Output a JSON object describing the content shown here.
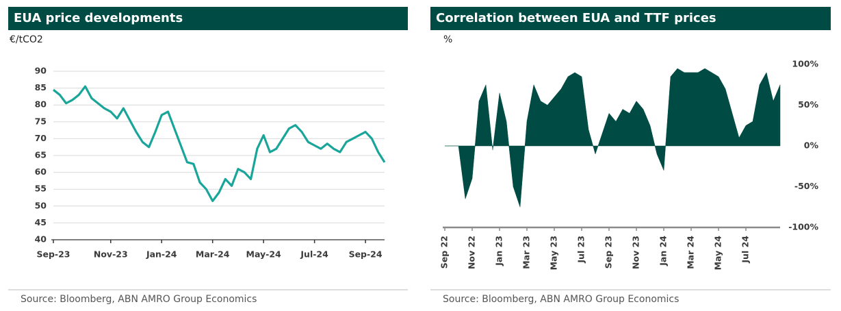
{
  "chart_data": [
    {
      "type": "line",
      "title": "EUA price developments",
      "ylabel": "€/tCO2",
      "x": [
        "Sep-23",
        "Sep-23",
        "Sep-23",
        "Sep-23",
        "Oct-23",
        "Oct-23",
        "Oct-23",
        "Oct-23",
        "Oct-23",
        "Nov-23",
        "Nov-23",
        "Nov-23",
        "Nov-23",
        "Dec-23",
        "Dec-23",
        "Dec-23",
        "Dec-23",
        "Jan-24",
        "Jan-24",
        "Jan-24",
        "Jan-24",
        "Feb-24",
        "Feb-24",
        "Feb-24",
        "Feb-24",
        "Mar-24",
        "Mar-24",
        "Mar-24",
        "Mar-24",
        "Apr-24",
        "Apr-24",
        "Apr-24",
        "Apr-24",
        "May-24",
        "May-24",
        "May-24",
        "May-24",
        "Jun-24",
        "Jun-24",
        "Jun-24",
        "Jun-24",
        "Jul-24",
        "Jul-24",
        "Jul-24",
        "Jul-24",
        "Aug-24",
        "Aug-24",
        "Aug-24",
        "Aug-24",
        "Sep-24",
        "Sep-24",
        "Sep-24",
        "Sep-24"
      ],
      "series": [
        {
          "name": "EUA",
          "color": "#1aa59a",
          "values": [
            84.5,
            83,
            80.5,
            81.5,
            83,
            85.5,
            82,
            80.5,
            79,
            78,
            76,
            79,
            75.5,
            72,
            69,
            67.5,
            72,
            77,
            78,
            73,
            68,
            63,
            62.5,
            57,
            55,
            51.5,
            54,
            58,
            56,
            61,
            60,
            58,
            67,
            71,
            66,
            67,
            70,
            73,
            74,
            72,
            69,
            68,
            67,
            68.5,
            67,
            66,
            69,
            70,
            71,
            72,
            70,
            66,
            63
          ]
        }
      ],
      "xticks": [
        "Sep-23",
        "Nov-23",
        "Jan-24",
        "Mar-24",
        "May-24",
        "Jul-24",
        "Sep-24"
      ],
      "ylim": [
        40,
        90
      ],
      "yticks": [
        40,
        45,
        50,
        55,
        60,
        65,
        70,
        75,
        80,
        85,
        90
      ],
      "grid": true,
      "source": "Source: Bloomberg, ABN AMRO Group Economics"
    },
    {
      "type": "area",
      "title": "Correlation between EUA and TTF prices",
      "ylabel": "%",
      "x": [
        "Sep 22",
        "Sep 22",
        "Oct 22",
        "Oct 22",
        "Nov 22",
        "Nov 22",
        "Dec 22",
        "Dec 22",
        "Jan 23",
        "Jan 23",
        "Feb 23",
        "Feb 23",
        "Mar 23",
        "Mar 23",
        "Apr 23",
        "Apr 23",
        "May 23",
        "May 23",
        "Jun 23",
        "Jun 23",
        "Jul 23",
        "Jul 23",
        "Aug 23",
        "Aug 23",
        "Sep 23",
        "Sep 23",
        "Oct 23",
        "Oct 23",
        "Nov 23",
        "Nov 23",
        "Dec 23",
        "Dec 23",
        "Jan 24",
        "Jan 24",
        "Feb 24",
        "Feb 24",
        "Mar 24",
        "Mar 24",
        "Apr 24",
        "Apr 24",
        "May 24",
        "May 24",
        "Jun 24",
        "Jun 24",
        "Jul 24",
        "Jul 24",
        "Aug 24",
        "Aug 24",
        "Sep 24",
        "Sep 24"
      ],
      "series": [
        {
          "name": "Correlation",
          "color": "#004c45",
          "values": [
            0,
            0,
            0,
            -65,
            -40,
            55,
            75,
            -5,
            65,
            30,
            -50,
            -75,
            30,
            75,
            55,
            50,
            60,
            70,
            85,
            90,
            85,
            20,
            -10,
            15,
            40,
            30,
            45,
            40,
            55,
            45,
            25,
            -10,
            -30,
            85,
            95,
            90,
            90,
            90,
            95,
            90,
            85,
            70,
            40,
            10,
            25,
            30,
            75,
            90,
            55,
            75
          ]
        }
      ],
      "xticks": [
        "Sep 22",
        "Nov 22",
        "Jan 23",
        "Mar 23",
        "May 23",
        "Jul 23",
        "Sep 23",
        "Nov 23",
        "Jan 24",
        "Mar 24",
        "May 24",
        "Jul 24"
      ],
      "ylim": [
        -100,
        100
      ],
      "yticks": [
        {
          "value": -100,
          "label": "-100%"
        },
        {
          "value": -50,
          "label": "-50%"
        },
        {
          "value": 0,
          "label": "0%"
        },
        {
          "value": 50,
          "label": "50%"
        },
        {
          "value": 100,
          "label": "100%"
        }
      ],
      "grid": false,
      "source": "Source: Bloomberg, ABN AMRO Group Economics"
    }
  ]
}
